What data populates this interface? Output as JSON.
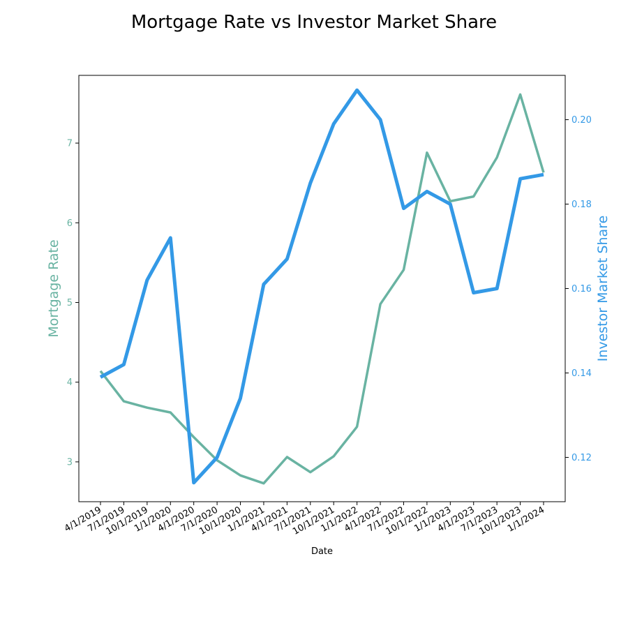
{
  "chart_data": {
    "type": "line",
    "title": "Mortgage Rate vs Investor Market Share",
    "xlabel": "Date",
    "categories": [
      "4/1/2019",
      "7/1/2019",
      "10/1/2019",
      "1/1/2020",
      "4/1/2020",
      "7/1/2020",
      "10/1/2020",
      "1/1/2021",
      "4/1/2021",
      "7/1/2021",
      "10/1/2021",
      "1/1/2022",
      "4/1/2022",
      "7/1/2022",
      "10/1/2022",
      "1/1/2023",
      "4/1/2023",
      "7/1/2023",
      "10/1/2023",
      "1/1/2024"
    ],
    "series": [
      {
        "axis": "left",
        "color": "#69b3a2",
        "values": [
          4.14,
          3.76,
          3.68,
          3.62,
          3.31,
          3.02,
          2.83,
          2.73,
          3.06,
          2.87,
          3.07,
          3.44,
          4.98,
          5.41,
          6.88,
          6.27,
          6.33,
          6.82,
          7.61,
          6.63
        ]
      },
      {
        "axis": "right",
        "color": "#3399e6",
        "values": [
          0.139,
          0.142,
          0.162,
          0.172,
          0.114,
          0.12,
          0.134,
          0.161,
          0.167,
          0.185,
          0.199,
          0.207,
          0.2,
          0.179,
          0.183,
          0.18,
          0.159,
          0.16,
          0.186,
          0.187
        ]
      }
    ],
    "y_left": {
      "label": "Mortgage Rate",
      "range": [
        2.5,
        7.85
      ],
      "ticks": [
        3,
        4,
        5,
        6,
        7
      ],
      "color": "#69b3a2"
    },
    "y_right": {
      "label": "Investor Market Share",
      "range": [
        0.1095,
        0.2105
      ],
      "ticks": [
        0.12,
        0.14,
        0.16,
        0.18,
        0.2
      ],
      "tick_labels": [
        "0.12",
        "0.14",
        "0.16",
        "0.18",
        "0.20"
      ],
      "color": "#3399e6"
    },
    "grid": false,
    "legend": "none"
  }
}
